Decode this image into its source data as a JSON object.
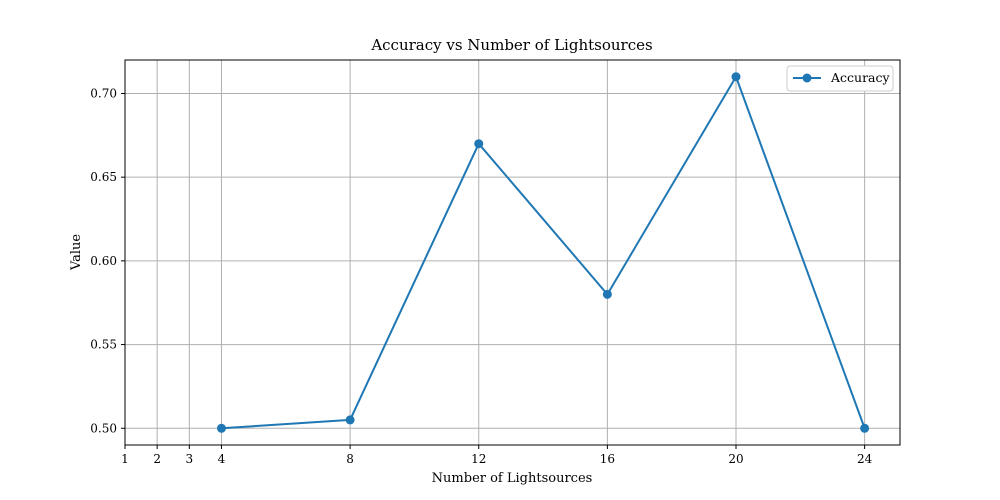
{
  "chart_data": {
    "type": "line",
    "title": "Accuracy vs Number of Lightsources",
    "xlabel": "Number of Lightsources",
    "ylabel": "Value",
    "x": [
      4,
      8,
      12,
      16,
      20,
      24
    ],
    "series": [
      {
        "name": "Accuracy",
        "values": [
          0.5,
          0.505,
          0.67,
          0.58,
          0.71,
          0.5
        ],
        "color": "#1f77b4"
      }
    ],
    "xticks": [
      1,
      2,
      3,
      4,
      8,
      12,
      16,
      20,
      24
    ],
    "xtick_labels": [
      "1",
      "2",
      "3",
      "4",
      "8",
      "12",
      "16",
      "20",
      "24"
    ],
    "yticks": [
      0.5,
      0.55,
      0.6,
      0.65,
      0.7
    ],
    "ytick_labels": [
      "0.50",
      "0.55",
      "0.60",
      "0.65",
      "0.70"
    ],
    "xlim": [
      1,
      25.1
    ],
    "ylim": [
      0.49,
      0.72
    ],
    "grid": true,
    "legend_position": "top-right",
    "marker": "circle",
    "grid_color": "#b0b0b0"
  }
}
